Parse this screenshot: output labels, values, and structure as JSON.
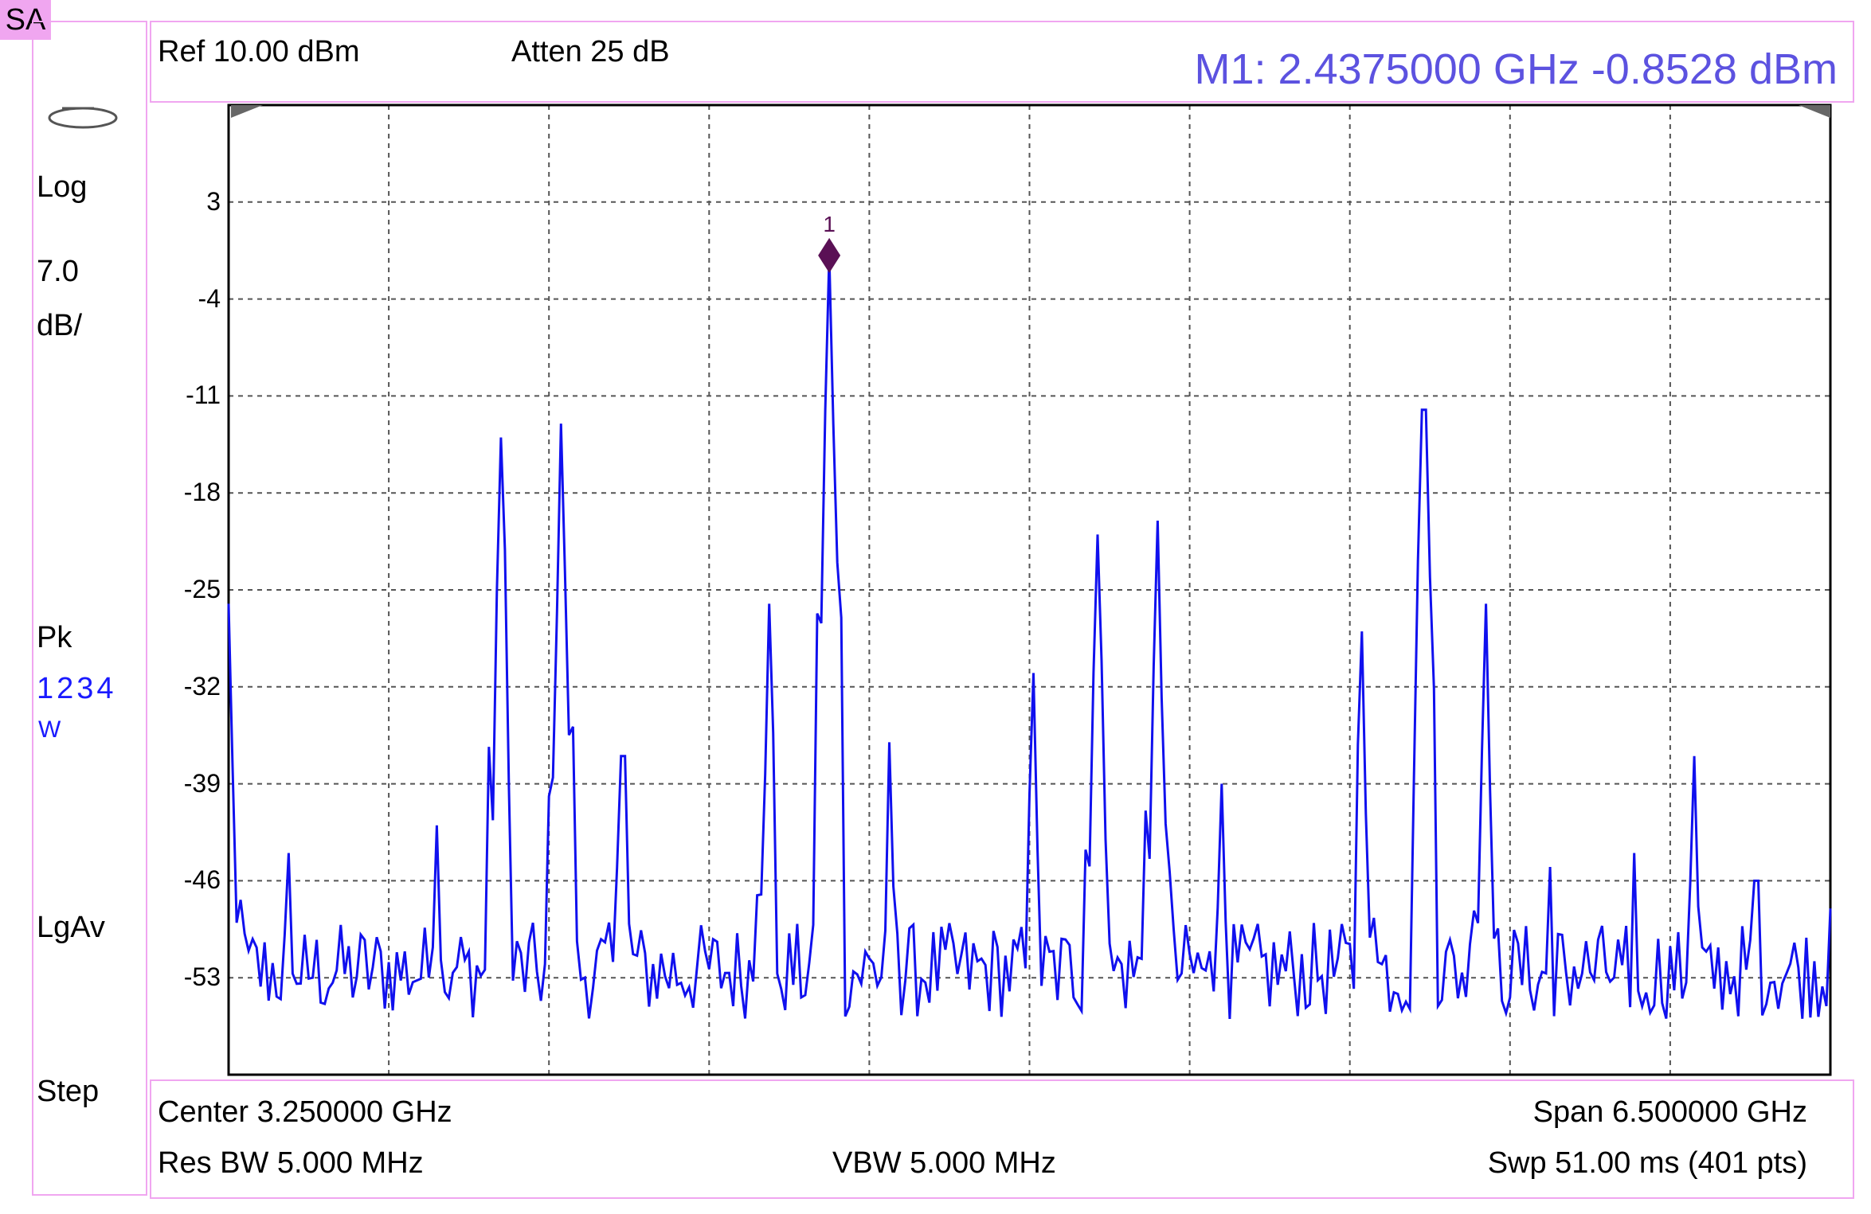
{
  "mode_badge": "SA",
  "header": {
    "ref": "Ref 10.00 dBm",
    "atten": "Atten 25 dB",
    "marker_readout": "M1:  2.4375000 GHz  -0.8528 dBm"
  },
  "left_panel": {
    "scale_type": "Log",
    "scale_value": "7.0",
    "scale_unit": "dB/",
    "detector": "Pk",
    "trace_numbers": "1234",
    "trace_mode": "W",
    "average_type": "LgAv",
    "step": "Step"
  },
  "footer": {
    "center": "Center 3.250000 GHz",
    "span": "Span 6.500000 GHz",
    "res_bw": "Res BW 5.000 MHz",
    "vbw": "VBW 5.000 MHz",
    "sweep": "Swp 51.00 ms (401 pts)"
  },
  "colors": {
    "trace": "#1010ee",
    "marker": "#5a1055",
    "grid": "#555555",
    "panel_border": "#f0a6f0",
    "marker_text": "#5c52e0"
  },
  "chart_data": {
    "type": "line",
    "title": "",
    "xlabel": "",
    "ylabel": "",
    "xlim_ghz": [
      0.0,
      6.5
    ],
    "ylim_dbm": [
      -60,
      10
    ],
    "y_ticks": [
      "3",
      "-4",
      "-11",
      "-18",
      "-25",
      "-32",
      "-39",
      "-46",
      "-53"
    ],
    "y_tick_values": [
      3,
      -4,
      -11,
      -18,
      -25,
      -32,
      -39,
      -46,
      -53
    ],
    "x_divisions": 10,
    "grid": true,
    "noise_floor_dbm": [
      -56,
      -49
    ],
    "series": [
      {
        "peaks": [
          {
            "x_ghz": 0.0,
            "y_dbm": -26
          },
          {
            "x_ghz": 0.25,
            "y_dbm": -44
          },
          {
            "x_ghz": 0.85,
            "y_dbm": -42
          },
          {
            "x_ghz": 1.1,
            "y_dbm": -14
          },
          {
            "x_ghz": 1.35,
            "y_dbm": -13
          },
          {
            "x_ghz": 1.6,
            "y_dbm": -37
          },
          {
            "x_ghz": 2.19,
            "y_dbm": -26
          },
          {
            "x_ghz": 2.4375,
            "y_dbm": -0.85
          },
          {
            "x_ghz": 2.68,
            "y_dbm": -36
          },
          {
            "x_ghz": 3.27,
            "y_dbm": -31
          },
          {
            "x_ghz": 3.52,
            "y_dbm": -21
          },
          {
            "x_ghz": 3.77,
            "y_dbm": -20
          },
          {
            "x_ghz": 4.03,
            "y_dbm": -39
          },
          {
            "x_ghz": 4.6,
            "y_dbm": -28
          },
          {
            "x_ghz": 4.85,
            "y_dbm": -12
          },
          {
            "x_ghz": 5.1,
            "y_dbm": -26
          },
          {
            "x_ghz": 5.36,
            "y_dbm": -45
          },
          {
            "x_ghz": 5.7,
            "y_dbm": -44
          },
          {
            "x_ghz": 5.95,
            "y_dbm": -37
          },
          {
            "x_ghz": 6.2,
            "y_dbm": -46
          },
          {
            "x_ghz": 6.5,
            "y_dbm": -48
          }
        ]
      }
    ],
    "marker": {
      "label": "1",
      "x_ghz": 2.4375,
      "y_dbm": -0.8528
    }
  }
}
